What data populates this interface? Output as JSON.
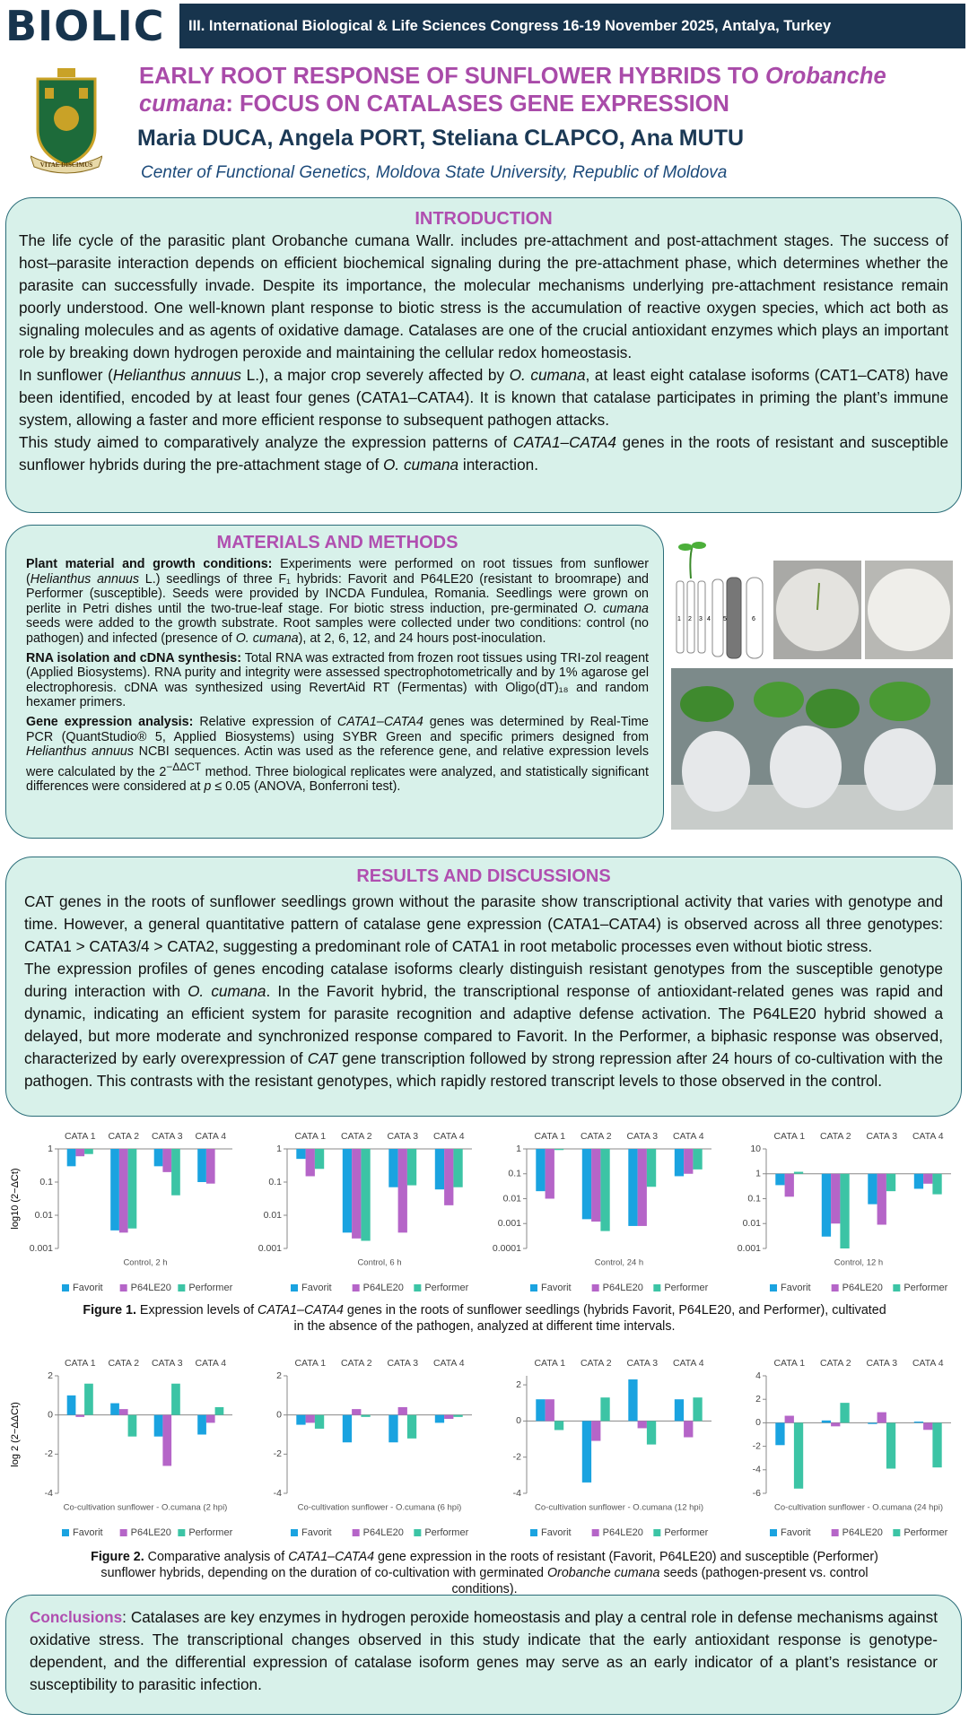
{
  "header": {
    "logo": "BIOLIC",
    "congress": "III. International Biological & Life Sciences Congress  16-19 November 2025, Antalya, Turkey",
    "crest_motto": "VITAE DISCIMUS"
  },
  "title": [
    "EARLY ROOT RESPONSE OF SUNFLOWER HYBRIDS TO ",
    {
      "italic": "Orobanche cumana"
    },
    ": FOCUS ON CATALASES GENE EXPRESSION"
  ],
  "authors": "Maria DUCA,  Angela PORT, Steliana CLAPCO,  Ana MUTU",
  "affiliation": "Center of Functional Genetics, Moldova State University, Republic of Moldova",
  "introduction": {
    "heading": "INTRODUCTION",
    "paragraphs": [
      [
        "The life cycle of the parasitic plant Orobanche cumana Wallr. includes pre-attachment and post-attachment stages. The success of host–parasite interaction depends on efficient biochemical signaling during the pre-attachment phase, which determines whether the parasite can successfully invade. Despite its importance, the molecular mechanisms underlying pre-attachment resistance remain poorly understood. One well-known plant response to biotic stress is the accumulation of reactive oxygen species, which act both as signaling molecules and as agents of oxidative damage. Catalases are one of the crucial antioxidant enzymes which plays an important role by breaking down hydrogen peroxide and maintaining the cellular redox homeostasis."
      ],
      [
        "In sunflower (",
        {
          "italic": "Helianthus annuus"
        },
        " L.), a major crop severely affected by ",
        {
          "italic": "O. cumana"
        },
        ", at least eight catalase isoforms (CAT1–CAT8) have been identified, encoded by at least four genes (CATA1–CATA4). It is known that catalase participates in priming the plant’s immune system, allowing a faster and more efficient response to subsequent pathogen attacks."
      ],
      [
        "This study aimed to comparatively analyze the expression patterns of ",
        {
          "italic": "CATA1–CATA4"
        },
        " genes in the roots of resistant and susceptible sunflower hybrids during the pre-attachment stage of ",
        {
          "italic": "O. cumana"
        },
        " interaction."
      ]
    ]
  },
  "methods": {
    "heading": "MATERIALS AND METHODS",
    "paragraphs": [
      [
        {
          "bold": "Plant material and growth conditions:"
        },
        " Experiments were performed on root tissues from sunflower (",
        {
          "italic": "Helianthus annuus"
        },
        " L.) seedlings of three F₁ hybrids: Favorit and P64LE20 (resistant to broomrape) and Performer (susceptible). Seeds were provided by INCDA Fundulea, Romania. Seedlings were grown on perlite in Petri dishes until the two-true-leaf stage. For biotic stress induction, pre-germinated ",
        {
          "italic": "O. cumana"
        },
        " seeds were added to the growth substrate. Root samples were collected under two conditions: control (no pathogen) and infected (presence of ",
        {
          "italic": "O. cumana"
        },
        "), at 2, 6, 12, and 24 hours post-inoculation."
      ],
      [
        {
          "bold": "RNA isolation and cDNA synthesis:"
        },
        " Total RNA was extracted from frozen root tissues using TRI-zol reagent (Applied Biosystems). RNA purity and integrity were assessed spectrophotometrically and by 1% agarose gel electrophoresis. cDNA was synthesized using RevertAid RT (Fermentas) with Oligo(dT)₁₈ and random hexamer primers."
      ],
      [
        {
          "bold": "Gene expression analysis:"
        },
        " Relative expression of ",
        {
          "italic": "CATA1–CATA4"
        },
        " genes was determined by Real-Time PCR (QuantStudio® 5, Applied Biosystems) using SYBR Green and specific primers designed from ",
        {
          "italic": "Helianthus annuus"
        },
        " NCBI sequences. Actin was used as the reference gene, and relative expression levels were calculated by the 2",
        {
          "sup": "−ΔΔCT"
        },
        " method. Three biological replicates were analyzed, and statistically significant differences were considered at ",
        {
          "italic": "p"
        },
        " ≤ 0.05 (ANOVA, Bonferroni test)."
      ]
    ],
    "photo_labels": [
      "1",
      "2",
      "3",
      "4",
      "5",
      "6"
    ]
  },
  "results": {
    "heading": "RESULTS AND DISCUSSIONS",
    "paragraphs": [
      [
        "CAT genes in the roots of sunflower seedlings grown without the parasite show transcriptional activity that varies with genotype and time. However, a general quantitative pattern of catalase gene expression (CATA1–CATA4) is observed across all three genotypes: CATA1 > CATA3/4 > CATA2, suggesting a predominant role of CATA1 in root metabolic processes even without biotic stress."
      ],
      [
        "The expression profiles of genes encoding catalase isoforms clearly distinguish resistant genotypes from the susceptible genotype during interaction with ",
        {
          "italic": "O. cumana"
        },
        ".  In the Favorit hybrid, the transcriptional response of antioxidant-related genes was rapid and dynamic, indicating an efficient system for parasite recognition and adaptive defense activation. The P64LE20 hybrid showed a delayed, but more moderate and synchronized response compared to Favorit. In the Performer, a biphasic response was observed, characterized by early overexpression of ",
        {
          "italic": "CAT"
        },
        " gene transcription followed by strong repression after 24 hours of co-cultivation with the pathogen. This contrasts with the resistant genotypes, which rapidly restored transcript levels to those observed in the control."
      ]
    ]
  },
  "chart_data": [
    {
      "type": "bar",
      "yscale": "log",
      "xlabel": "Control, 2 h",
      "ylabel": "log10 (2−ΔCt)",
      "categories": [
        "CATA 1",
        "CATA 2",
        "CATA 3",
        "CATA 4"
      ],
      "ylim": [
        0.001,
        1
      ],
      "yticks": [
        1,
        0.1,
        0.01,
        0.001
      ],
      "series": [
        {
          "name": "Favorit",
          "color": "#1aa3e0",
          "values": [
            0.3,
            0.0035,
            0.3,
            0.1
          ]
        },
        {
          "name": "P64LE20",
          "color": "#b565c8",
          "values": [
            0.6,
            0.003,
            0.2,
            0.09
          ]
        },
        {
          "name": "Performer",
          "color": "#3cc4a5",
          "values": [
            0.7,
            0.004,
            0.04,
            null
          ]
        }
      ]
    },
    {
      "type": "bar",
      "yscale": "log",
      "xlabel": "Control, 6 h",
      "categories": [
        "CATA 1",
        "CATA 2",
        "CATA 3",
        "CATA 4"
      ],
      "ylim": [
        0.001,
        1
      ],
      "yticks": [
        1,
        0.1,
        0.01,
        0.001
      ],
      "series": [
        {
          "name": "Favorit",
          "color": "#1aa3e0",
          "values": [
            0.5,
            0.003,
            0.07,
            0.06
          ]
        },
        {
          "name": "P64LE20",
          "color": "#b565c8",
          "values": [
            0.15,
            0.002,
            0.003,
            0.02
          ]
        },
        {
          "name": "Performer",
          "color": "#3cc4a5",
          "values": [
            0.25,
            0.0017,
            0.08,
            0.07
          ]
        }
      ]
    },
    {
      "type": "bar",
      "yscale": "log",
      "xlabel": "Control, 24 h",
      "categories": [
        "CATA 1",
        "CATA 2",
        "CATA 3",
        "CATA 4"
      ],
      "ylim": [
        0.0001,
        1
      ],
      "yticks": [
        1,
        0.1,
        0.01,
        0.001,
        0.0001
      ],
      "series": [
        {
          "name": "Favorit",
          "color": "#1aa3e0",
          "values": [
            0.02,
            0.0015,
            0.0008,
            0.08
          ]
        },
        {
          "name": "P64LE20",
          "color": "#b565c8",
          "values": [
            0.01,
            0.0012,
            0.0008,
            0.1
          ]
        },
        {
          "name": "Performer",
          "color": "#3cc4a5",
          "values": [
            0.9,
            0.0005,
            0.03,
            0.15
          ]
        }
      ]
    },
    {
      "type": "bar",
      "yscale": "log",
      "xlabel": "Control, 12 h",
      "categories": [
        "CATA 1",
        "CATA 2",
        "CATA 3",
        "CATA 4"
      ],
      "ylim": [
        0.001,
        10
      ],
      "yticks": [
        10,
        1,
        0.1,
        0.01,
        0.001
      ],
      "series": [
        {
          "name": "Favorit",
          "color": "#1aa3e0",
          "values": [
            0.35,
            0.003,
            0.06,
            0.25
          ]
        },
        {
          "name": "P64LE20",
          "color": "#b565c8",
          "values": [
            0.12,
            0.01,
            0.009,
            0.4
          ]
        },
        {
          "name": "Performer",
          "color": "#3cc4a5",
          "values": [
            1.2,
            0.001,
            0.2,
            0.15
          ]
        }
      ]
    },
    {
      "type": "bar",
      "xlabel": "Co-cultivation  sunflower - O.cumana (2 hpi)",
      "ylabel": "log 2 (2−ΔΔCt)",
      "categories": [
        "CATA 1",
        "CATA 2",
        "CATA 3",
        "CATA 4"
      ],
      "ylim": [
        -4,
        2
      ],
      "yticks": [
        2,
        0,
        -2,
        -4
      ],
      "series": [
        {
          "name": "Favorit",
          "color": "#1aa3e0",
          "values": [
            1.0,
            0.6,
            -1.1,
            -1.0
          ]
        },
        {
          "name": "P64LE20",
          "color": "#b565c8",
          "values": [
            -0.1,
            0.3,
            -2.6,
            -0.4
          ]
        },
        {
          "name": "Performer",
          "color": "#3cc4a5",
          "values": [
            1.6,
            -1.1,
            1.6,
            0.4
          ]
        }
      ]
    },
    {
      "type": "bar",
      "xlabel": "Co-cultivation  sunflower - O.cumana (6 hpi)",
      "categories": [
        "CATA 1",
        "CATA 2",
        "CATA 3",
        "CATA 4"
      ],
      "ylim": [
        -4,
        2
      ],
      "yticks": [
        2,
        0,
        -2,
        -4
      ],
      "series": [
        {
          "name": "Favorit",
          "color": "#1aa3e0",
          "values": [
            -0.5,
            -1.4,
            -1.4,
            -0.4
          ]
        },
        {
          "name": "P64LE20",
          "color": "#b565c8",
          "values": [
            -0.4,
            0.3,
            0.4,
            -0.2
          ]
        },
        {
          "name": "Performer",
          "color": "#3cc4a5",
          "values": [
            -0.7,
            -0.1,
            -1.2,
            -0.1
          ]
        }
      ]
    },
    {
      "type": "bar",
      "xlabel": "Co-cultivation  sunflower - O.cumana (12 hpi)",
      "categories": [
        "CATA 1",
        "CATA 2",
        "CATA 3",
        "CATA 4"
      ],
      "ylim": [
        -4,
        2.5
      ],
      "yticks": [
        2,
        0,
        -2,
        -4
      ],
      "series": [
        {
          "name": "Favorit",
          "color": "#1aa3e0",
          "values": [
            1.2,
            -3.4,
            2.3,
            1.2
          ]
        },
        {
          "name": "P64LE20",
          "color": "#b565c8",
          "values": [
            1.2,
            -1.1,
            -0.4,
            -0.9
          ]
        },
        {
          "name": "Performer",
          "color": "#3cc4a5",
          "values": [
            -0.5,
            1.3,
            -1.3,
            1.3
          ]
        }
      ]
    },
    {
      "type": "bar",
      "xlabel": "Co-cultivation  sunflower - O.cumana (24 hpi)",
      "categories": [
        "CATA 1",
        "CATA 2",
        "CATA 3",
        "CATA 4"
      ],
      "ylim": [
        -6,
        4
      ],
      "yticks": [
        4,
        2,
        0,
        -2,
        -4,
        -6
      ],
      "series": [
        {
          "name": "Favorit",
          "color": "#1aa3e0",
          "values": [
            -1.9,
            0.2,
            -0.1,
            0.1
          ]
        },
        {
          "name": "P64LE20",
          "color": "#b565c8",
          "values": [
            0.6,
            -0.3,
            0.9,
            -0.6
          ]
        },
        {
          "name": "Performer",
          "color": "#3cc4a5",
          "values": [
            -5.6,
            1.7,
            -3.9,
            -3.8
          ]
        }
      ]
    }
  ],
  "figure1_caption": [
    {
      "bold": "Figure 1."
    },
    " Expression levels of ",
    {
      "italic": "CATA1–CATA4"
    },
    "  genes in the roots of sunflower seedlings (hybrids Favorit, P64LE20, and Performer), cultivated in the absence of the pathogen, analyzed at different time intervals."
  ],
  "figure2_caption": [
    {
      "bold": "Figure 2."
    },
    " Comparative analysis of ",
    {
      "italic": "CATA1–CATA4"
    },
    " gene expression in the roots of resistant (Favorit, P64LE20) and susceptible (Performer) sunflower hybrids, depending on the duration of co-cultivation with germinated ",
    {
      "italic": "Orobanche cumana"
    },
    " seeds (pathogen-present vs. control conditions)."
  ],
  "conclusions": [
    {
      "bold": "Conclusions"
    },
    ": Catalases are key enzymes in hydrogen peroxide homeostasis and play a central role in defense mechanisms against oxidative stress. The transcriptional changes observed in this study indicate that the early antioxidant response is genotype-dependent, and the differential expression of catalase isoform genes may serve as an early indicator of a plant’s resistance or susceptibility to parasitic infection."
  ]
}
